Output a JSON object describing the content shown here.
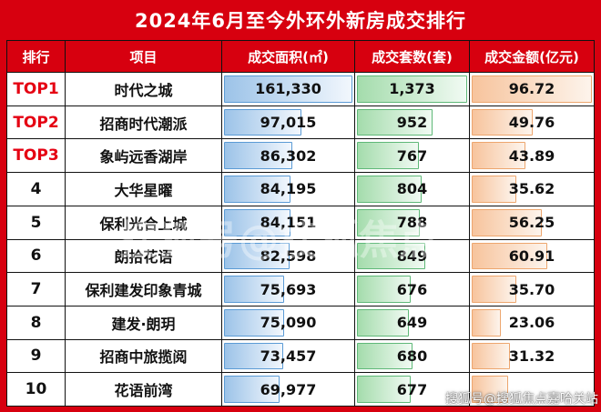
{
  "title": "2024年6月至今外环外新房成交排行",
  "columns": {
    "rank": "排行",
    "project": "项目",
    "area": "成交面积(㎡)",
    "units": "成交套数(套)",
    "amount": "成交金额(亿元)"
  },
  "colors": {
    "background_red": "#d7000f",
    "top_rank_red": "#e50012",
    "area_bar_border": "#5b9bd5",
    "area_bar_fill": "#9cc3e8",
    "units_bar_border": "#5fb878",
    "units_bar_fill": "#a4dcac",
    "amount_bar_border": "#eda66e",
    "amount_bar_fill": "#f7c49d"
  },
  "rows": [
    {
      "rank": "TOP1",
      "is_top": true,
      "project": "时代之城",
      "area": "161,330",
      "area_pct": 100,
      "units": "1,373",
      "units_pct": 100,
      "amount": "96.72",
      "amount_pct": 100
    },
    {
      "rank": "TOP2",
      "is_top": true,
      "project": "招商时代潮派",
      "area": "97,015",
      "area_pct": 60,
      "units": "952",
      "units_pct": 69,
      "amount": "49.76",
      "amount_pct": 51
    },
    {
      "rank": "TOP3",
      "is_top": true,
      "project": "象屿远香湖岸",
      "area": "86,302",
      "area_pct": 53,
      "units": "767",
      "units_pct": 56,
      "amount": "43.89",
      "amount_pct": 45
    },
    {
      "rank": "4",
      "is_top": false,
      "project": "大华星曜",
      "area": "84,195",
      "area_pct": 52,
      "units": "804",
      "units_pct": 59,
      "amount": "35.62",
      "amount_pct": 37
    },
    {
      "rank": "5",
      "is_top": false,
      "project": "保利光合上城",
      "area": "84,151",
      "area_pct": 52,
      "units": "788",
      "units_pct": 57,
      "amount": "56.25",
      "amount_pct": 58
    },
    {
      "rank": "6",
      "is_top": false,
      "project": "朗拾花语",
      "area": "82,598",
      "area_pct": 51,
      "units": "849",
      "units_pct": 62,
      "amount": "60.91",
      "amount_pct": 63
    },
    {
      "rank": "7",
      "is_top": false,
      "project": "保利建发印象青城",
      "area": "75,693",
      "area_pct": 47,
      "units": "676",
      "units_pct": 49,
      "amount": "35.70",
      "amount_pct": 37
    },
    {
      "rank": "8",
      "is_top": false,
      "project": "建发·朗玥",
      "area": "75,090",
      "area_pct": 47,
      "units": "649",
      "units_pct": 47,
      "amount": "23.06",
      "amount_pct": 24
    },
    {
      "rank": "9",
      "is_top": false,
      "project": "招商中旅揽阅",
      "area": "73,457",
      "area_pct": 46,
      "units": "680",
      "units_pct": 50,
      "amount": "31.32",
      "amount_pct": 32
    },
    {
      "rank": "10",
      "is_top": false,
      "project": "花语前湾",
      "area": "69,977",
      "area_pct": 43,
      "units": "677",
      "units_pct": 49,
      "amount": "",
      "amount_pct": 30
    }
  ],
  "watermark": {
    "text": "搜狐号@搜狐焦点嘉哈关站",
    "ghost": "搜狐号@搜狐焦点"
  },
  "chart_data": {
    "type": "table",
    "title": "2024年6月至今外环外新房成交排行",
    "columns": [
      "排行",
      "项目",
      "成交面积(㎡)",
      "成交套数(套)",
      "成交金额(亿元)"
    ],
    "rows": [
      [
        "TOP1",
        "时代之城",
        161330,
        1373,
        96.72
      ],
      [
        "TOP2",
        "招商时代潮派",
        97015,
        952,
        49.76
      ],
      [
        "TOP3",
        "象屿远香湖岸",
        86302,
        767,
        43.89
      ],
      [
        "4",
        "大华星曜",
        84195,
        804,
        35.62
      ],
      [
        "5",
        "保利光合上城",
        84151,
        788,
        56.25
      ],
      [
        "6",
        "朗拾花语",
        82598,
        849,
        60.91
      ],
      [
        "7",
        "保利建发印象青城",
        75693,
        676,
        35.7
      ],
      [
        "8",
        "建发·朗玥",
        75090,
        649,
        23.06
      ],
      [
        "9",
        "招商中旅揽阅",
        73457,
        680,
        31.32
      ],
      [
        "10",
        "花语前湾",
        69977,
        677,
        null
      ]
    ],
    "databars": {
      "area_max": 161330,
      "units_max": 1373,
      "amount_max": 96.72,
      "note": "每个数值列含水平数据条，长度与数值成正比；面积列蓝色、套数列绿色、金额列橙色"
    }
  }
}
